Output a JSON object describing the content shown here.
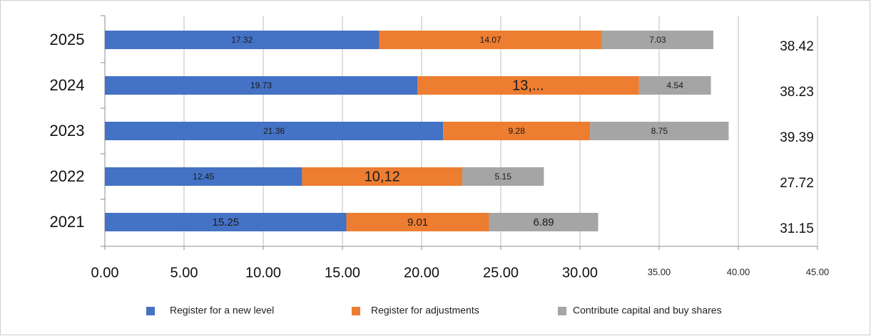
{
  "chart_data": {
    "type": "bar",
    "orientation": "horizontal",
    "stacked": true,
    "title": "",
    "xlabel": "",
    "ylabel": "",
    "categories": [
      "2025",
      "2024",
      "2023",
      "2022",
      "2021"
    ],
    "series": [
      {
        "name": "Register for a new level",
        "color": "#4472C4",
        "values": [
          17.32,
          19.73,
          21.36,
          12.45,
          15.25
        ],
        "labels": [
          "17.32",
          "19.73",
          "21.36",
          "12.45",
          "15.25"
        ]
      },
      {
        "name": "Register for adjustments",
        "color": "#ED7D31",
        "values": [
          14.07,
          14.0,
          9.28,
          10.12,
          9.01
        ],
        "labels": [
          "14.07",
          "13,...",
          "9.28",
          "10,12",
          "9.01"
        ]
      },
      {
        "name": "Contribute capital and buy shares",
        "color": "#A5A5A5",
        "values": [
          7.03,
          4.54,
          8.75,
          5.15,
          6.89
        ],
        "labels": [
          "7.03",
          "4.54",
          "8.75",
          "5.15",
          "6.89"
        ]
      }
    ],
    "totals": [
      "38.42",
      "38.23",
      "39.39",
      "27.72",
      "31.15"
    ],
    "xlim": [
      0,
      45
    ],
    "xticks": [
      "0.00",
      "5.00",
      "10.00",
      "15.00",
      "20.00",
      "25.00",
      "30.00",
      "35.00",
      "40.00",
      "45.00"
    ],
    "grid": true,
    "legend_position": "bottom"
  }
}
